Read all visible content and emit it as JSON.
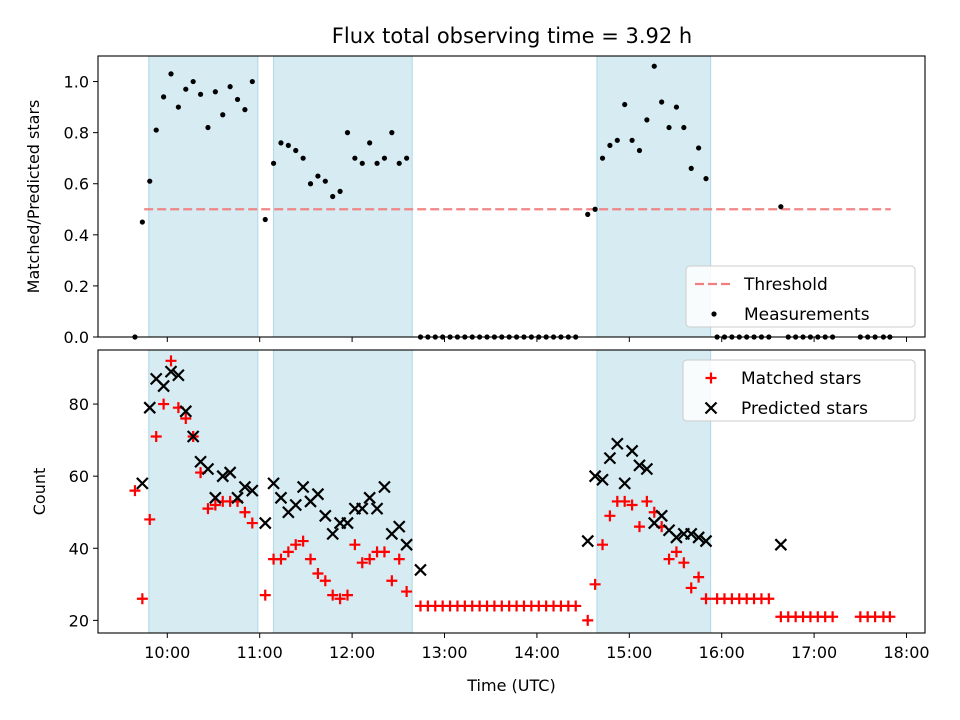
{
  "title": "Flux total observing time = 3.92 h",
  "chart_data": [
    {
      "type": "scatter",
      "title": "Flux total observing time = 3.92 h",
      "ylabel": "Matched/Predicted stars",
      "xlabel": "",
      "xlim": [
        9.25,
        18.2
      ],
      "ylim": [
        0,
        1.1
      ],
      "yticks": [
        0.0,
        0.2,
        0.4,
        0.6,
        0.8,
        1.0
      ],
      "ytick_labels": [
        "0.0",
        "0.2",
        "0.4",
        "0.6",
        "0.8",
        "1.0"
      ],
      "grid": false,
      "legend": "lower-right",
      "shaded_intervals": [
        [
          9.8,
          10.98
        ],
        [
          11.15,
          12.65
        ],
        [
          14.65,
          15.88
        ]
      ],
      "series": [
        {
          "name": "Threshold",
          "style": "dashed-line",
          "color": "#f08080",
          "x": [
            9.75,
            17.83
          ],
          "y": [
            0.5,
            0.5
          ]
        },
        {
          "name": "Measurements",
          "style": "dot",
          "color": "#000000",
          "x": [
            9.65,
            9.73,
            9.81,
            9.88,
            9.96,
            10.04,
            10.12,
            10.2,
            10.28,
            10.36,
            10.44,
            10.52,
            10.6,
            10.68,
            10.76,
            10.84,
            10.92,
            11.06,
            11.15,
            11.23,
            11.31,
            11.39,
            11.47,
            11.55,
            11.63,
            11.71,
            11.79,
            11.87,
            11.95,
            12.03,
            12.11,
            12.19,
            12.27,
            12.35,
            12.43,
            12.51,
            12.59,
            12.74,
            12.82,
            12.9,
            12.98,
            13.06,
            13.14,
            13.22,
            13.3,
            13.38,
            13.46,
            13.54,
            13.62,
            13.7,
            13.78,
            13.86,
            13.94,
            14.02,
            14.1,
            14.18,
            14.26,
            14.34,
            14.42,
            14.55,
            14.63,
            14.71,
            14.79,
            14.87,
            14.95,
            15.03,
            15.11,
            15.19,
            15.27,
            15.35,
            15.43,
            15.51,
            15.59,
            15.67,
            15.75,
            15.83,
            15.95,
            16.03,
            16.11,
            16.19,
            16.27,
            16.35,
            16.43,
            16.51,
            16.64,
            16.72,
            16.8,
            16.88,
            16.96,
            17.04,
            17.12,
            17.2,
            17.5,
            17.58,
            17.66,
            17.75,
            17.82
          ],
          "y": [
            0.0,
            0.45,
            0.61,
            0.81,
            0.94,
            1.03,
            0.9,
            0.97,
            1.0,
            0.95,
            0.82,
            0.96,
            0.87,
            0.98,
            0.93,
            0.89,
            1.0,
            0.46,
            0.68,
            0.76,
            0.75,
            0.73,
            0.7,
            0.6,
            0.63,
            0.61,
            0.55,
            0.57,
            0.8,
            0.7,
            0.68,
            0.76,
            0.68,
            0.7,
            0.8,
            0.68,
            0.7,
            0.0,
            0.0,
            0.0,
            0.0,
            0.0,
            0.0,
            0.0,
            0.0,
            0.0,
            0.0,
            0.0,
            0.0,
            0.0,
            0.0,
            0.0,
            0.0,
            0.0,
            0.0,
            0.0,
            0.0,
            0.0,
            0.0,
            0.48,
            0.5,
            0.7,
            0.75,
            0.77,
            0.91,
            0.77,
            0.73,
            0.85,
            1.06,
            0.92,
            0.82,
            0.9,
            0.82,
            0.66,
            0.74,
            0.62,
            0.0,
            0.0,
            0.0,
            0.0,
            0.0,
            0.0,
            0.0,
            0.0,
            0.51,
            0.0,
            0.0,
            0.0,
            0.0,
            0.0,
            0.0,
            0.0,
            0.0,
            0.0,
            0.0,
            0.0,
            0.0
          ]
        }
      ]
    },
    {
      "type": "scatter",
      "xlabel": "Time (UTC)",
      "ylabel": "Count",
      "xlim": [
        9.25,
        18.2
      ],
      "ylim": [
        16.5,
        95
      ],
      "yticks": [
        20,
        40,
        60,
        80
      ],
      "ytick_labels": [
        "20",
        "40",
        "60",
        "80"
      ],
      "xticks": [
        10,
        11,
        12,
        13,
        14,
        15,
        16,
        17,
        18
      ],
      "xtick_labels": [
        "10:00",
        "11:00",
        "12:00",
        "13:00",
        "14:00",
        "15:00",
        "16:00",
        "17:00",
        "18:00"
      ],
      "grid": false,
      "legend": "upper-right",
      "shaded_intervals": [
        [
          9.8,
          10.98
        ],
        [
          11.15,
          12.65
        ],
        [
          14.65,
          15.88
        ]
      ],
      "series": [
        {
          "name": "Matched stars",
          "style": "plus",
          "color": "#ff0000",
          "x": [
            9.65,
            9.73,
            9.81,
            9.88,
            9.96,
            10.04,
            10.12,
            10.2,
            10.28,
            10.36,
            10.44,
            10.52,
            10.6,
            10.68,
            10.76,
            10.84,
            10.92,
            11.06,
            11.15,
            11.23,
            11.31,
            11.39,
            11.47,
            11.55,
            11.63,
            11.71,
            11.79,
            11.87,
            11.95,
            12.03,
            12.11,
            12.19,
            12.27,
            12.35,
            12.43,
            12.51,
            12.59,
            12.74,
            12.82,
            12.9,
            12.98,
            13.06,
            13.14,
            13.22,
            13.3,
            13.38,
            13.46,
            13.54,
            13.62,
            13.7,
            13.78,
            13.86,
            13.94,
            14.02,
            14.1,
            14.18,
            14.26,
            14.34,
            14.42,
            14.55,
            14.63,
            14.71,
            14.79,
            14.87,
            14.95,
            15.03,
            15.11,
            15.19,
            15.27,
            15.35,
            15.43,
            15.51,
            15.59,
            15.67,
            15.75,
            15.83,
            15.95,
            16.03,
            16.11,
            16.19,
            16.27,
            16.35,
            16.43,
            16.51,
            16.64,
            16.72,
            16.8,
            16.88,
            16.96,
            17.04,
            17.12,
            17.2,
            17.5,
            17.58,
            17.66,
            17.75,
            17.82
          ],
          "y": [
            56,
            26,
            48,
            71,
            80,
            92,
            79,
            76,
            71,
            61,
            51,
            52,
            53,
            53,
            53,
            50,
            47,
            27,
            37,
            37,
            39,
            41,
            42,
            37,
            33,
            31,
            27,
            26,
            27,
            41,
            36,
            37,
            39,
            39,
            31,
            37,
            28,
            24,
            24,
            24,
            24,
            24,
            24,
            24,
            24,
            24,
            24,
            24,
            24,
            24,
            24,
            24,
            24,
            24,
            24,
            24,
            24,
            24,
            24,
            20,
            30,
            41,
            49,
            53,
            53,
            52,
            46,
            53,
            50,
            46,
            37,
            39,
            36,
            29,
            32,
            26,
            26,
            26,
            26,
            26,
            26,
            26,
            26,
            26,
            21,
            21,
            21,
            21,
            21,
            21,
            21,
            21,
            21,
            21,
            21,
            21,
            21
          ]
        },
        {
          "name": "Predicted stars",
          "style": "x",
          "color": "#000000",
          "x": [
            9.73,
            9.81,
            9.88,
            9.96,
            10.04,
            10.12,
            10.2,
            10.28,
            10.36,
            10.44,
            10.52,
            10.6,
            10.68,
            10.76,
            10.84,
            10.92,
            11.06,
            11.15,
            11.23,
            11.31,
            11.39,
            11.47,
            11.55,
            11.63,
            11.71,
            11.79,
            11.87,
            11.95,
            12.03,
            12.11,
            12.19,
            12.27,
            12.35,
            12.43,
            12.51,
            12.59,
            12.74,
            14.55,
            14.63,
            14.71,
            14.79,
            14.87,
            14.95,
            15.03,
            15.11,
            15.19,
            15.27,
            15.35,
            15.43,
            15.51,
            15.59,
            15.67,
            15.75,
            15.83,
            16.64
          ],
          "y": [
            58,
            79,
            87,
            85,
            89,
            88,
            78,
            71,
            64,
            62,
            54,
            60,
            61,
            54,
            57,
            56,
            47,
            58,
            54,
            50,
            52,
            57,
            53,
            55,
            49,
            44,
            47,
            47,
            51,
            51,
            54,
            51,
            57,
            44,
            46,
            41,
            34,
            42,
            60,
            59,
            65,
            69,
            58,
            67,
            63,
            62,
            47,
            49,
            45,
            43,
            44,
            44,
            43,
            42,
            41
          ]
        }
      ]
    }
  ]
}
